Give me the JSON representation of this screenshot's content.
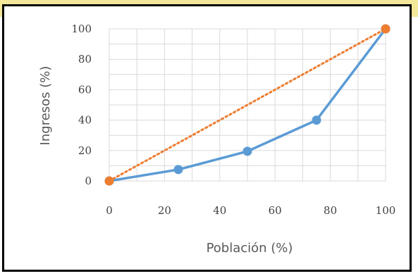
{
  "chart_data": {
    "type": "line",
    "title": "",
    "xlabel": "Población (%)",
    "ylabel": "Ingresos (%)",
    "xlim": [
      0,
      100
    ],
    "ylim": [
      0,
      100
    ],
    "xticks": [
      0,
      20,
      40,
      60,
      80,
      100
    ],
    "yticks": [
      0,
      20,
      40,
      60,
      80,
      100
    ],
    "x_tick_labels": [
      "0",
      "20",
      "40",
      "60",
      "80",
      "100"
    ],
    "y_tick_labels": [
      "0",
      "20",
      "40",
      "60",
      "80",
      "100"
    ],
    "grid": true,
    "series": [
      {
        "color": "#5b9bd5",
        "line_style": "solid",
        "marker": "circle",
        "x": [
          0,
          25,
          50,
          75,
          100
        ],
        "y": [
          0,
          7.5,
          19.5,
          40,
          100
        ]
      },
      {
        "color": "#ed7d31",
        "line_style": "dotted",
        "marker": "circle",
        "x": [
          0,
          100
        ],
        "y": [
          0,
          100
        ]
      }
    ]
  },
  "colors": {
    "background_band": "#f3e79a",
    "frame": "#000000",
    "grid": "#d9d9d9"
  }
}
